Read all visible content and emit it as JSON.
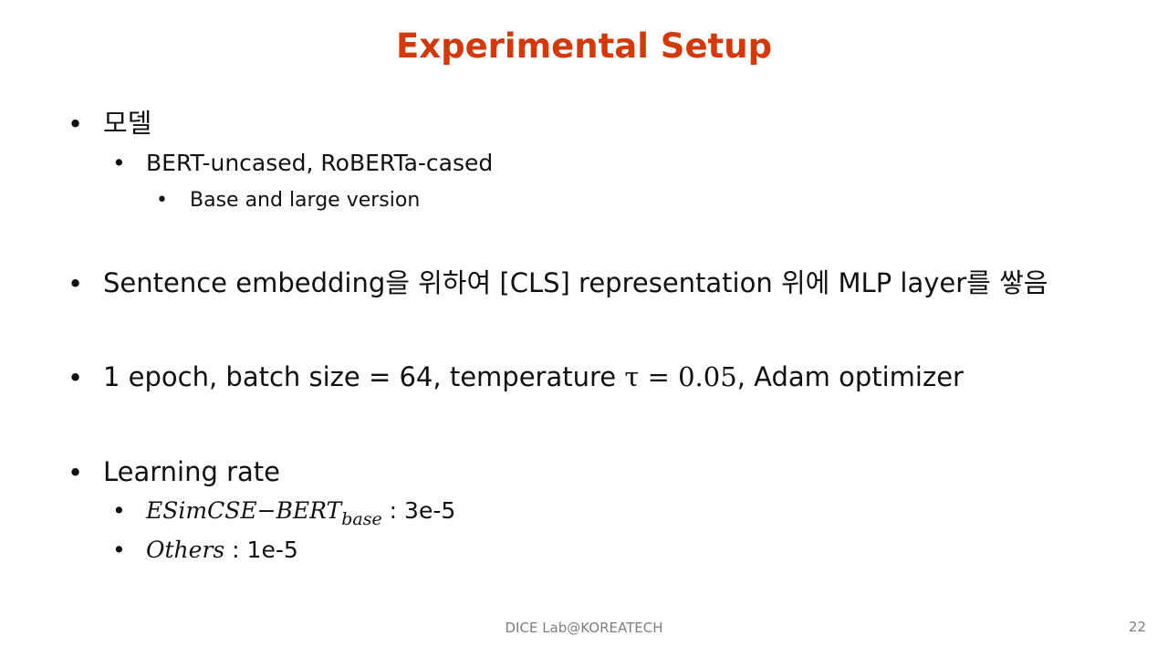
{
  "slide": {
    "title": "Experimental Setup",
    "bullet": "•",
    "model": {
      "heading": "모델",
      "sub": "BERT-uncased, RoBERTa-cased",
      "subsub": "Base and large version"
    },
    "sentence": "Sentence embedding을 위하여 [CLS] representation 위에 MLP layer를 쌓음",
    "hyper": {
      "before": "1 epoch, batch size = 64, temperature ",
      "math": "τ = 0.05",
      "after": ", Adam optimizer"
    },
    "lr": {
      "heading": "Learning rate",
      "esim_main": "ESimCSE−BERT",
      "esim_sub": "base",
      "esim_value": " : 3e-5",
      "others_main": "Others",
      "others_value": " : 1e-5"
    },
    "footer": "DICE Lab@KOREATECH",
    "page_number": "22"
  }
}
